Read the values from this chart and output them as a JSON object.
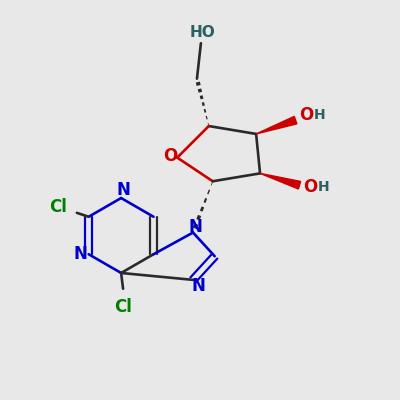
{
  "background_color": "#e8e8e8",
  "bond_color": "#2a2a2a",
  "blue_color": "#0000cc",
  "green_color": "#008000",
  "red_color": "#cc0000",
  "dark_teal": "#2a6060",
  "figsize": [
    4.0,
    4.0
  ],
  "dpi": 100,
  "xlim": [
    0,
    10
  ],
  "ylim": [
    0,
    10
  ]
}
